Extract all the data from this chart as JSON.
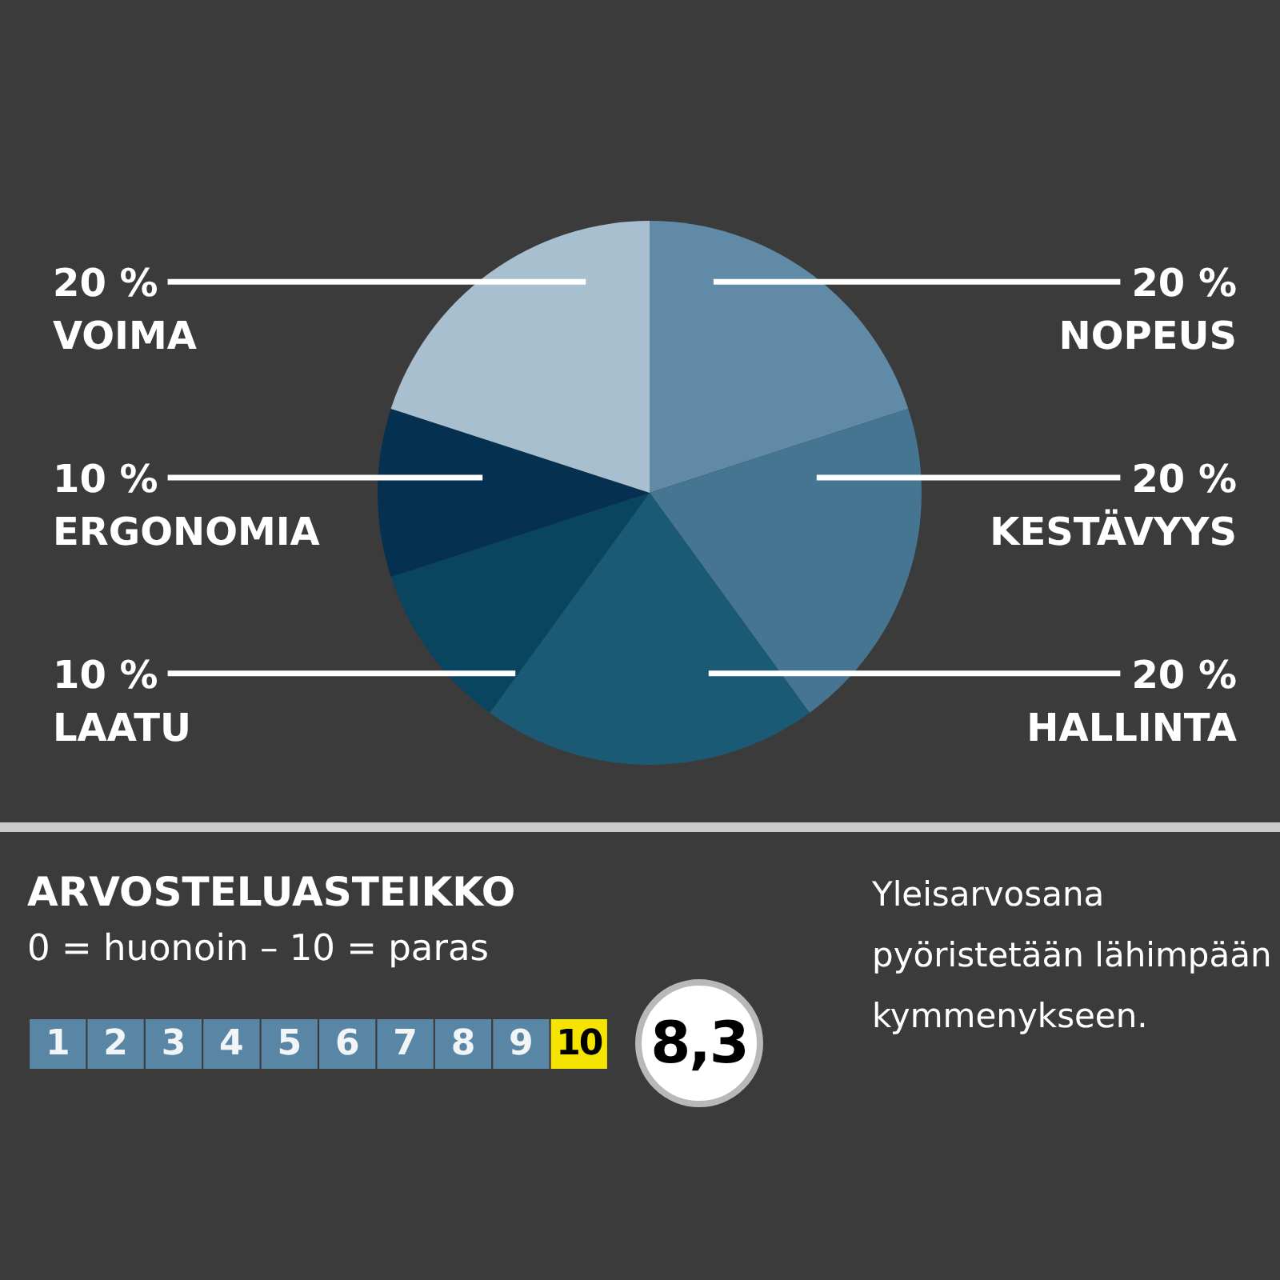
{
  "chart_data": [
    {
      "type": "pie",
      "categories": [
        "NOPEUS",
        "KESTÄVYYS",
        "HALLINTA",
        "LAATU",
        "ERGONOMIA",
        "VOIMA"
      ],
      "values": [
        20,
        20,
        20,
        10,
        10,
        20
      ],
      "colors": [
        "#608aa6",
        "#457590",
        "#1a5a74",
        "#0a4560",
        "#053050",
        "#a8bfd0"
      ],
      "value_labels": [
        "20 %",
        "20 %",
        "20 %",
        "10 %",
        "10 %",
        "20 %"
      ]
    },
    {
      "type": "heatmap",
      "title": "ARVOSTELUASTEIKKO",
      "subtitle": "0 = huonoin – 10 = paras",
      "categories": [
        null,
        null,
        null,
        null,
        null,
        null,
        null,
        null,
        null,
        null
      ],
      "y_categories": [
        null
      ],
      "cells": [
        [
          1,
          2,
          3,
          4,
          5,
          6,
          7,
          8,
          9,
          10
        ]
      ],
      "colors": [
        "#5a86a5",
        "#5a86a5",
        "#5a86a5",
        "#5a86a5",
        "#5a86a5",
        "#5a86a5",
        "#5a86a5",
        "#5a86a5",
        "#5a86a5",
        "#f5e400"
      ],
      "data_labels": true,
      "annotations": [
        "8,3",
        "Yleisarvosana pyöristetään lähimpään kymmenykseen."
      ]
    }
  ]
}
